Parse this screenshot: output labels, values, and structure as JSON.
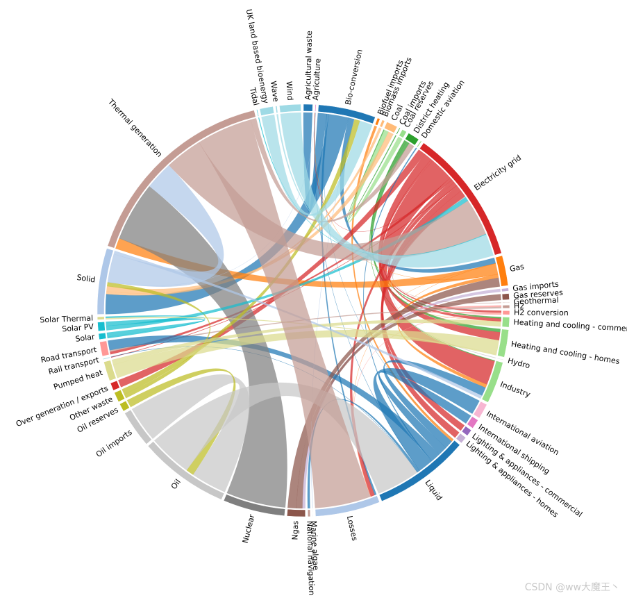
{
  "chart_data": {
    "type": "chord",
    "watermark": "CSDN @ww大魔王丶",
    "nodes": [
      {
        "name": "Agricultural waste",
        "color": "#1f77b4"
      },
      {
        "name": "Agriculture",
        "color": "#e377c2"
      },
      {
        "name": "Bio-conversion",
        "color": "#1f77b4"
      },
      {
        "name": "Biofuel imports",
        "color": "#ff7f0e"
      },
      {
        "name": "Biomass imports",
        "color": "#ffbb78"
      },
      {
        "name": "Coal",
        "color": "#ffbb78"
      },
      {
        "name": "Coal imports",
        "color": "#2ca02c"
      },
      {
        "name": "Coal reserves",
        "color": "#98df8a"
      },
      {
        "name": "District heating",
        "color": "#2ca02c"
      },
      {
        "name": "Domestic aviation",
        "color": "#98df8a"
      },
      {
        "name": "Electricity grid",
        "color": "#d62728"
      },
      {
        "name": "Gas",
        "color": "#ff7f0e"
      },
      {
        "name": "Gas imports",
        "color": "#c5b0d5"
      },
      {
        "name": "Gas reserves",
        "color": "#8c564b"
      },
      {
        "name": "Geothermal",
        "color": "#c49c94"
      },
      {
        "name": "H2",
        "color": "#c49c94"
      },
      {
        "name": "H2 conversion",
        "color": "#ff9896"
      },
      {
        "name": "Heating and cooling - commercial",
        "color": "#98df8a"
      },
      {
        "name": "Heating and cooling - homes",
        "color": "#98df8a"
      },
      {
        "name": "Hydro",
        "color": "#c7c7c7"
      },
      {
        "name": "Industry",
        "color": "#98df8a"
      },
      {
        "name": "International aviation",
        "color": "#f7b6d2"
      },
      {
        "name": "International shipping",
        "color": "#e377c2"
      },
      {
        "name": "Lighting & appliances - commercial",
        "color": "#9467bd"
      },
      {
        "name": "Lighting & appliances - homes",
        "color": "#c5b0d5"
      },
      {
        "name": "Liquid",
        "color": "#1f77b4"
      },
      {
        "name": "Losses",
        "color": "#aec7e8"
      },
      {
        "name": "Marine algae",
        "color": "#aec7e8"
      },
      {
        "name": "National navigation",
        "color": "#c49c94"
      },
      {
        "name": "Ngas",
        "color": "#8c564b"
      },
      {
        "name": "Nuclear",
        "color": "#7f7f7f"
      },
      {
        "name": "Oil",
        "color": "#c7c7c7"
      },
      {
        "name": "Oil imports",
        "color": "#c7c7c7"
      },
      {
        "name": "Oil reserves",
        "color": "#bcbd22"
      },
      {
        "name": "Other waste",
        "color": "#bcbd22"
      },
      {
        "name": "Over generation / exports",
        "color": "#d62728"
      },
      {
        "name": "Pumped heat",
        "color": "#dbdb8d"
      },
      {
        "name": "Rail transport",
        "color": "#9edae5"
      },
      {
        "name": "Road transport",
        "color": "#ff9896"
      },
      {
        "name": "Solar",
        "color": "#17becf"
      },
      {
        "name": "Solar PV",
        "color": "#17becf"
      },
      {
        "name": "Solar Thermal",
        "color": "#dbdb8d"
      },
      {
        "name": "Solid",
        "color": "#aec7e8"
      },
      {
        "name": "Thermal generation",
        "color": "#c49c94"
      },
      {
        "name": "Tidal",
        "color": "#17becf"
      },
      {
        "name": "UK land based bioenergy",
        "color": "#9edae5"
      },
      {
        "name": "Wave",
        "color": "#9edae5"
      },
      {
        "name": "Wind",
        "color": "#9edae5"
      }
    ],
    "links": [
      {
        "source": "Agricultural waste",
        "target": "Bio-conversion",
        "value": 124.729
      },
      {
        "source": "Bio-conversion",
        "target": "Liquid",
        "value": 0.597
      },
      {
        "source": "Bio-conversion",
        "target": "Losses",
        "value": 26.862
      },
      {
        "source": "Bio-conversion",
        "target": "Solid",
        "value": 280.322
      },
      {
        "source": "Bio-conversion",
        "target": "Gas",
        "value": 81.144
      },
      {
        "source": "Biofuel imports",
        "target": "Liquid",
        "value": 35
      },
      {
        "source": "Biomass imports",
        "target": "Solid",
        "value": 35
      },
      {
        "source": "Coal imports",
        "target": "Coal",
        "value": 11.606
      },
      {
        "source": "Coal reserves",
        "target": "Coal",
        "value": 63.965
      },
      {
        "source": "Coal",
        "target": "Solid",
        "value": 75.571
      },
      {
        "source": "District heating",
        "target": "Industry",
        "value": 10.639
      },
      {
        "source": "District heating",
        "target": "Heating and cooling - commercial",
        "value": 22.505
      },
      {
        "source": "District heating",
        "target": "Heating and cooling - homes",
        "value": 46.184
      },
      {
        "source": "Electricity grid",
        "target": "Over generation / exports",
        "value": 104.453
      },
      {
        "source": "Electricity grid",
        "target": "Heating and cooling - homes",
        "value": 113.726
      },
      {
        "source": "Electricity grid",
        "target": "H2 conversion",
        "value": 27.14
      },
      {
        "source": "Electricity grid",
        "target": "Industry",
        "value": 342.165
      },
      {
        "source": "Electricity grid",
        "target": "Road transport",
        "value": 37.797
      },
      {
        "source": "Electricity grid",
        "target": "Agriculture",
        "value": 4.412
      },
      {
        "source": "Electricity grid",
        "target": "Heating and cooling - commercial",
        "value": 40.858
      },
      {
        "source": "Electricity grid",
        "target": "Losses",
        "value": 56.691
      },
      {
        "source": "Electricity grid",
        "target": "Rail transport",
        "value": 7.863
      },
      {
        "source": "Electricity grid",
        "target": "Lighting & appliances - commercial",
        "value": 90.008
      },
      {
        "source": "Electricity grid",
        "target": "Lighting & appliances - homes",
        "value": 93.494
      },
      {
        "source": "Gas imports",
        "target": "Ngas",
        "value": 40.719
      },
      {
        "source": "Gas reserves",
        "target": "Ngas",
        "value": 82.233
      },
      {
        "source": "Gas",
        "target": "Heating and cooling - commercial",
        "value": 0.129
      },
      {
        "source": "Gas",
        "target": "Losses",
        "value": 1.401
      },
      {
        "source": "Gas",
        "target": "Thermal generation",
        "value": 151.891
      },
      {
        "source": "Gas",
        "target": "Agriculture",
        "value": 2.096
      },
      {
        "source": "Gas",
        "target": "Industry",
        "value": 48.58
      },
      {
        "source": "Geothermal",
        "target": "Electricity grid",
        "value": 7.013
      },
      {
        "source": "H2 conversion",
        "target": "H2",
        "value": 20.897
      },
      {
        "source": "H2 conversion",
        "target": "Losses",
        "value": 6.242
      },
      {
        "source": "H2",
        "target": "Road transport",
        "value": 20.897
      },
      {
        "source": "Hydro",
        "target": "Electricity grid",
        "value": 6.995
      },
      {
        "source": "Liquid",
        "target": "Industry",
        "value": 121.066
      },
      {
        "source": "Liquid",
        "target": "International shipping",
        "value": 128.69
      },
      {
        "source": "Liquid",
        "target": "Road transport",
        "value": 135.835
      },
      {
        "source": "Liquid",
        "target": "Domestic aviation",
        "value": 14.458
      },
      {
        "source": "Liquid",
        "target": "International aviation",
        "value": 206.267
      },
      {
        "source": "Liquid",
        "target": "Agriculture",
        "value": 3.64
      },
      {
        "source": "Liquid",
        "target": "National navigation",
        "value": 33.218
      },
      {
        "source": "Liquid",
        "target": "Rail transport",
        "value": 4.413
      },
      {
        "source": "Marine algae",
        "target": "Bio-conversion",
        "value": 4.375
      },
      {
        "source": "Ngas",
        "target": "Gas",
        "value": 122.952
      },
      {
        "source": "Nuclear",
        "target": "Thermal generation",
        "value": 839.978
      },
      {
        "source": "Oil imports",
        "target": "Oil",
        "value": 504.287
      },
      {
        "source": "Oil reserves",
        "target": "Oil",
        "value": 107.703
      },
      {
        "source": "Oil",
        "target": "Liquid",
        "value": 611.99
      },
      {
        "source": "Other waste",
        "target": "Solid",
        "value": 56.587
      },
      {
        "source": "Other waste",
        "target": "Bio-conversion",
        "value": 77.81
      },
      {
        "source": "Pumped heat",
        "target": "Heating and cooling - homes",
        "value": 193.026
      },
      {
        "source": "Pumped heat",
        "target": "Heating and cooling - commercial",
        "value": 70.672
      },
      {
        "source": "Solar PV",
        "target": "Electricity grid",
        "value": 59.901
      },
      {
        "source": "Solar Thermal",
        "target": "Heating and cooling - homes",
        "value": 19.263
      },
      {
        "source": "Solar",
        "target": "Solar Thermal",
        "value": 19.263
      },
      {
        "source": "Solar",
        "target": "Solar PV",
        "value": 59.901
      },
      {
        "source": "Solid",
        "target": "Agriculture",
        "value": 0.882
      },
      {
        "source": "Solid",
        "target": "Thermal generation",
        "value": 400.12
      },
      {
        "source": "Solid",
        "target": "Industry",
        "value": 46.477
      },
      {
        "source": "Thermal generation",
        "target": "Electricity grid",
        "value": 525.531
      },
      {
        "source": "Thermal generation",
        "target": "Losses",
        "value": 787.129
      },
      {
        "source": "Thermal generation",
        "target": "District heating",
        "value": 79.329
      },
      {
        "source": "Tidal",
        "target": "Electricity grid",
        "value": 9.452
      },
      {
        "source": "UK land based bioenergy",
        "target": "Bio-conversion",
        "value": 182.01
      },
      {
        "source": "Wave",
        "target": "Electricity grid",
        "value": 19.013
      },
      {
        "source": "Wind",
        "target": "Electricity grid",
        "value": 289.366
      }
    ]
  }
}
